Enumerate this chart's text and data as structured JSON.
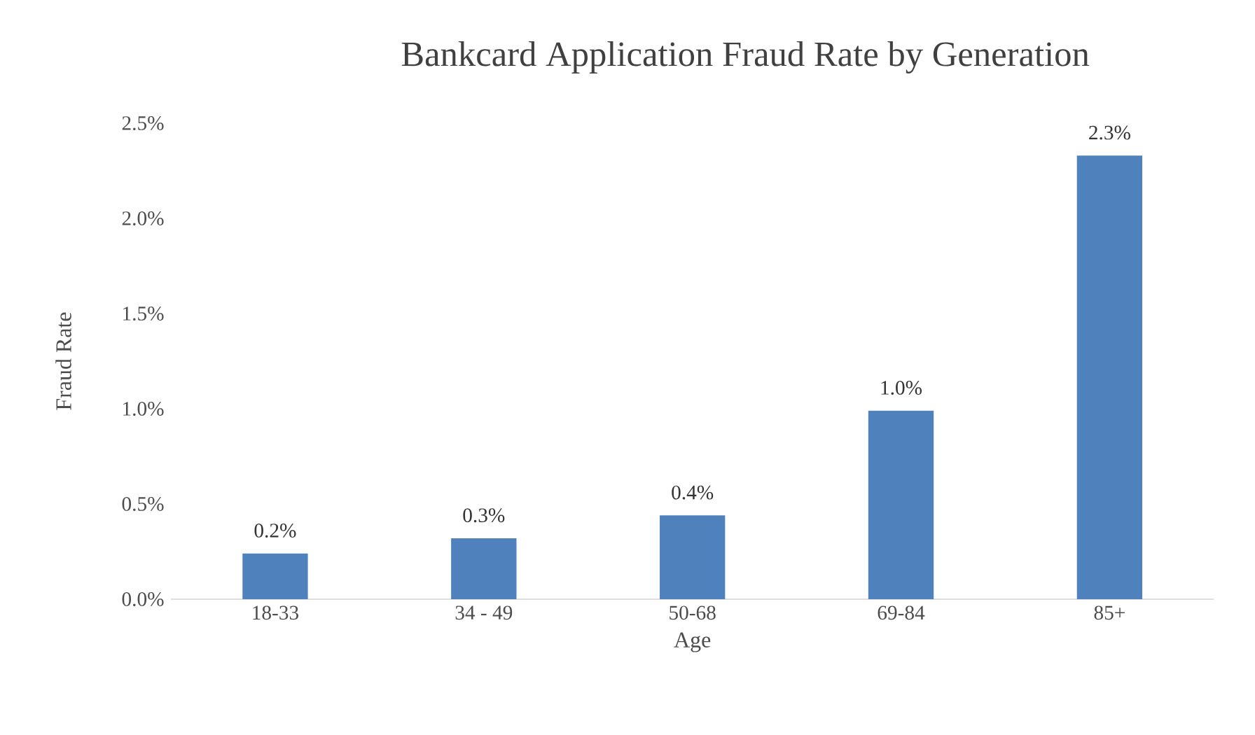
{
  "chart_data": {
    "type": "bar",
    "title": "Bankcard Application Fraud Rate by Generation",
    "xlabel": "Age",
    "ylabel": "Fraud Rate",
    "categories": [
      "18-33",
      "34 - 49",
      "50-68",
      "69-84",
      "85+"
    ],
    "values": [
      0.24,
      0.32,
      0.44,
      0.99,
      2.33
    ],
    "value_labels": [
      "0.2%",
      "0.3%",
      "0.4%",
      "1.0%",
      "2.3%"
    ],
    "color": "#4f81bd",
    "ylim": [
      0,
      2.5
    ],
    "yticks": [
      {
        "value": 0,
        "label": "0.0%"
      },
      {
        "value": 0.5,
        "label": "0.5%"
      },
      {
        "value": 1.0,
        "label": "1.0%"
      },
      {
        "value": 1.5,
        "label": "1.5%"
      },
      {
        "value": 2.0,
        "label": "2.0%"
      },
      {
        "value": 2.5,
        "label": "2.5%"
      }
    ],
    "grid": false
  }
}
